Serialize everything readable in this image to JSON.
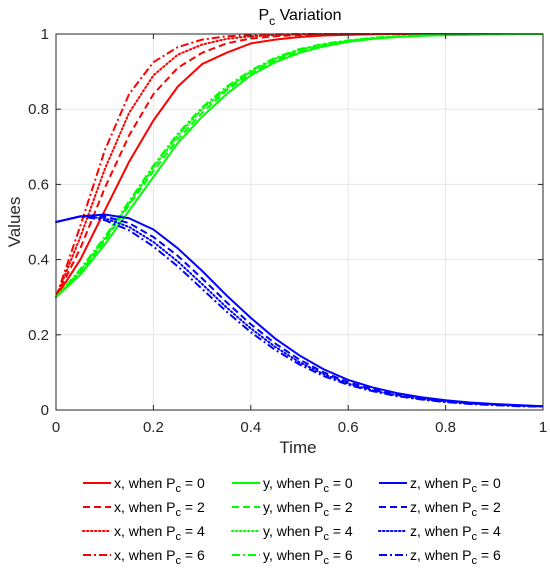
{
  "chart_data": {
    "type": "line",
    "title_main": "P",
    "title_sub": "c",
    "title_rest": " Variation",
    "xlabel": "Time",
    "ylabel": "Values",
    "xlim": [
      0,
      1
    ],
    "ylim": [
      0,
      1
    ],
    "x_ticks": [
      "0",
      "0.2",
      "0.4",
      "0.6",
      "0.8",
      "1"
    ],
    "y_ticks": [
      "0",
      "0.2",
      "0.4",
      "0.6",
      "0.8",
      "1"
    ],
    "grid": true,
    "legend_placement": "bottom",
    "x": [
      0,
      0.05,
      0.1,
      0.15,
      0.2,
      0.25,
      0.3,
      0.35,
      0.4,
      0.45,
      0.5,
      0.55,
      0.6,
      0.65,
      0.7,
      0.75,
      0.8,
      0.85,
      0.9,
      0.95,
      1.0
    ],
    "series": [
      {
        "name": "x, when Pc = 0",
        "legend_prefix": "x, when P",
        "legend_sub": "c",
        "legend_suffix": " = 0",
        "color": "#ff0000",
        "dash": "solid",
        "values": [
          0.3,
          0.4,
          0.53,
          0.66,
          0.77,
          0.86,
          0.92,
          0.95,
          0.975,
          0.985,
          0.992,
          0.996,
          0.998,
          0.999,
          1.0,
          1.0,
          1.0,
          1.0,
          1.0,
          1.0,
          1.0
        ]
      },
      {
        "name": "x, when Pc = 2",
        "legend_prefix": "x, when P",
        "legend_sub": "c",
        "legend_suffix": " = 2",
        "color": "#ff0000",
        "dash": "dashed",
        "values": [
          0.3,
          0.43,
          0.59,
          0.73,
          0.84,
          0.91,
          0.95,
          0.975,
          0.988,
          0.994,
          0.997,
          0.999,
          1.0,
          1.0,
          1.0,
          1.0,
          1.0,
          1.0,
          1.0,
          1.0,
          1.0
        ]
      },
      {
        "name": "x, when Pc = 4",
        "legend_prefix": "x, when P",
        "legend_sub": "c",
        "legend_suffix": " = 4",
        "color": "#ff0000",
        "dash": "dotted",
        "values": [
          0.3,
          0.46,
          0.64,
          0.79,
          0.89,
          0.945,
          0.972,
          0.987,
          0.994,
          0.997,
          0.999,
          1.0,
          1.0,
          1.0,
          1.0,
          1.0,
          1.0,
          1.0,
          1.0,
          1.0,
          1.0
        ]
      },
      {
        "name": "x, when Pc = 6",
        "legend_prefix": "x, when P",
        "legend_sub": "c",
        "legend_suffix": " = 6",
        "color": "#ff0000",
        "dash": "dashdot",
        "values": [
          0.3,
          0.49,
          0.69,
          0.84,
          0.925,
          0.965,
          0.985,
          0.994,
          0.997,
          0.999,
          1.0,
          1.0,
          1.0,
          1.0,
          1.0,
          1.0,
          1.0,
          1.0,
          1.0,
          1.0,
          1.0
        ]
      },
      {
        "name": "y, when Pc = 0",
        "legend_prefix": "y, when P",
        "legend_sub": "c",
        "legend_suffix": " = 0",
        "color": "#00ff00",
        "dash": "solid",
        "values": [
          0.3,
          0.36,
          0.44,
          0.53,
          0.62,
          0.71,
          0.78,
          0.84,
          0.89,
          0.925,
          0.95,
          0.967,
          0.979,
          0.987,
          0.992,
          0.995,
          0.997,
          0.998,
          0.999,
          1.0,
          1.0
        ]
      },
      {
        "name": "y, when Pc = 2",
        "legend_prefix": "y, when P",
        "legend_sub": "c",
        "legend_suffix": " = 2",
        "color": "#00ff00",
        "dash": "dashed",
        "values": [
          0.3,
          0.365,
          0.45,
          0.545,
          0.635,
          0.72,
          0.79,
          0.85,
          0.895,
          0.93,
          0.955,
          0.97,
          0.981,
          0.988,
          0.993,
          0.996,
          0.997,
          0.998,
          0.999,
          1.0,
          1.0
        ]
      },
      {
        "name": "y, when Pc = 4",
        "legend_prefix": "y, when P",
        "legend_sub": "c",
        "legend_suffix": " = 4",
        "color": "#00ff00",
        "dash": "dotted",
        "values": [
          0.3,
          0.37,
          0.455,
          0.55,
          0.645,
          0.73,
          0.8,
          0.855,
          0.9,
          0.934,
          0.958,
          0.972,
          0.982,
          0.989,
          0.993,
          0.996,
          0.998,
          0.999,
          0.999,
          1.0,
          1.0
        ]
      },
      {
        "name": "y, when Pc = 6",
        "legend_prefix": "y, when P",
        "legend_sub": "c",
        "legend_suffix": " = 6",
        "color": "#00ff00",
        "dash": "dashdot",
        "values": [
          0.3,
          0.375,
          0.46,
          0.555,
          0.65,
          0.735,
          0.805,
          0.86,
          0.903,
          0.937,
          0.96,
          0.974,
          0.983,
          0.99,
          0.994,
          0.996,
          0.998,
          0.999,
          0.999,
          1.0,
          1.0
        ]
      },
      {
        "name": "z, when Pc = 0",
        "legend_prefix": "z, when P",
        "legend_sub": "c",
        "legend_suffix": " = 0",
        "color": "#0000ff",
        "dash": "solid",
        "values": [
          0.5,
          0.515,
          0.52,
          0.51,
          0.48,
          0.43,
          0.37,
          0.305,
          0.245,
          0.19,
          0.145,
          0.108,
          0.08,
          0.06,
          0.045,
          0.034,
          0.026,
          0.02,
          0.016,
          0.013,
          0.01
        ]
      },
      {
        "name": "z, when Pc = 2",
        "legend_prefix": "z, when P",
        "legend_sub": "c",
        "legend_suffix": " = 2",
        "color": "#0000ff",
        "dash": "dashed",
        "values": [
          0.5,
          0.515,
          0.515,
          0.497,
          0.46,
          0.41,
          0.35,
          0.287,
          0.228,
          0.177,
          0.134,
          0.1,
          0.074,
          0.055,
          0.041,
          0.031,
          0.024,
          0.018,
          0.015,
          0.012,
          0.01
        ]
      },
      {
        "name": "z, when Pc = 4",
        "legend_prefix": "z, when P",
        "legend_sub": "c",
        "legend_suffix": " = 4",
        "color": "#0000ff",
        "dash": "dotted",
        "values": [
          0.5,
          0.515,
          0.51,
          0.487,
          0.447,
          0.395,
          0.335,
          0.273,
          0.217,
          0.168,
          0.127,
          0.095,
          0.07,
          0.052,
          0.039,
          0.029,
          0.022,
          0.017,
          0.014,
          0.011,
          0.009
        ]
      },
      {
        "name": "z, when Pc = 6",
        "legend_prefix": "z, when P",
        "legend_sub": "c",
        "legend_suffix": " = 6",
        "color": "#0000ff",
        "dash": "dashdot",
        "values": [
          0.5,
          0.515,
          0.505,
          0.478,
          0.435,
          0.382,
          0.322,
          0.262,
          0.207,
          0.16,
          0.121,
          0.09,
          0.067,
          0.05,
          0.037,
          0.028,
          0.021,
          0.016,
          0.013,
          0.01,
          0.009
        ]
      }
    ]
  }
}
